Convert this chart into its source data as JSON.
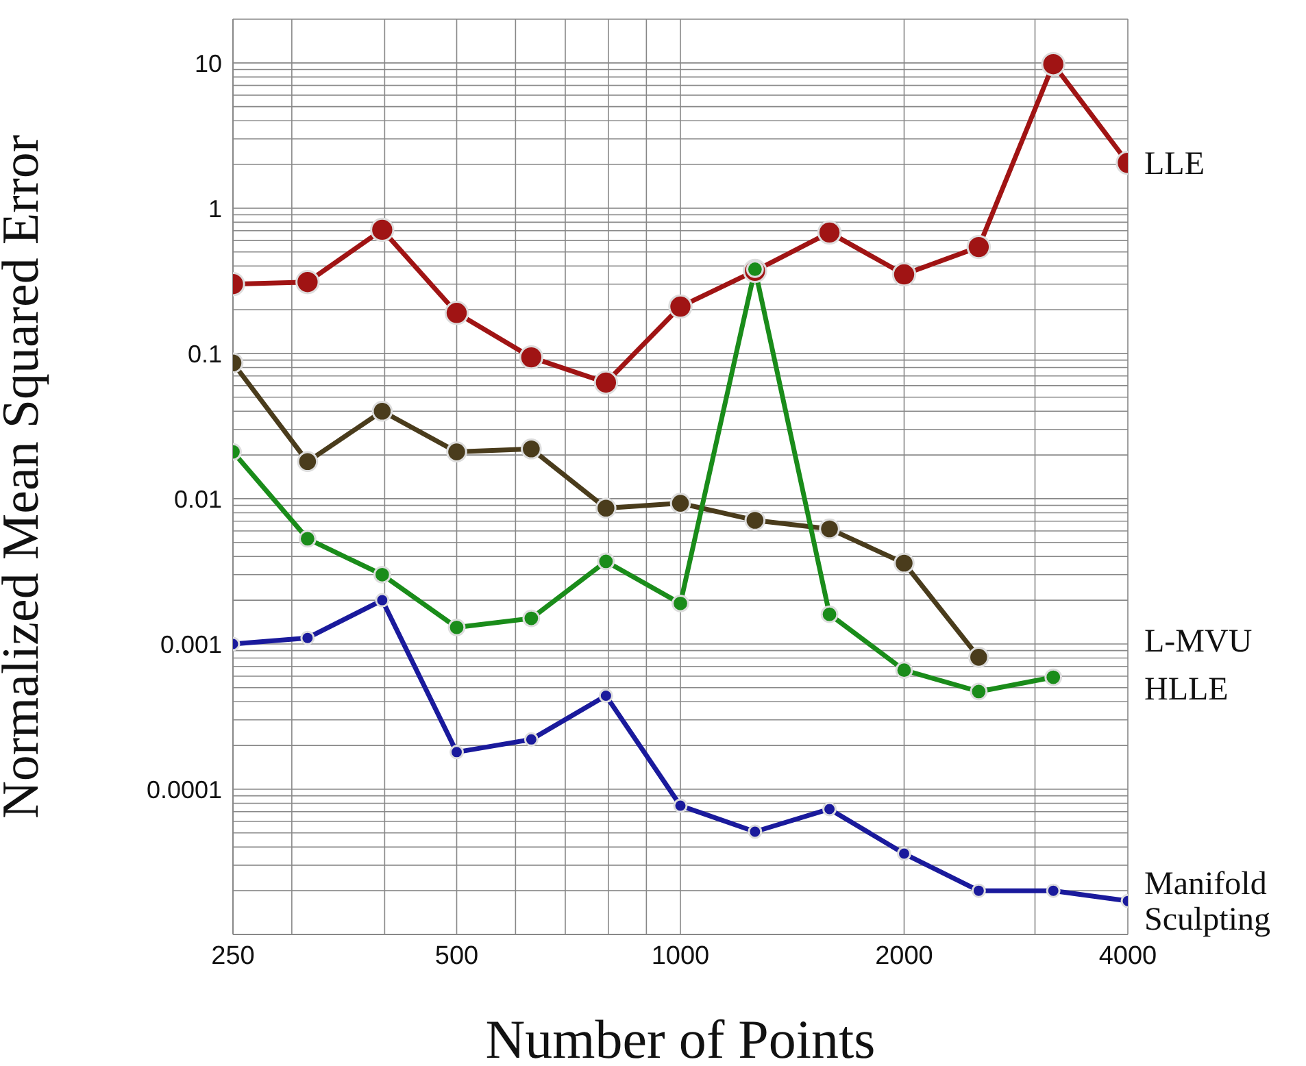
{
  "chart_data": {
    "type": "line",
    "xlabel": "Number of Points",
    "ylabel": "Normalized Mean Squared Error",
    "log": "xy",
    "grid": true,
    "marker": "circle",
    "line_style": "solid",
    "x": [
      250,
      315,
      397,
      500,
      630,
      794,
      1000,
      1260,
      1587,
      2000,
      2520,
      3175,
      4000
    ],
    "xlim": [
      250,
      4000
    ],
    "xticks": [
      250,
      {
        "value": 300,
        "label": null
      },
      {
        "value": 400,
        "label": null
      },
      500,
      {
        "value": 600,
        "label": null
      },
      {
        "value": 700,
        "label": null
      },
      {
        "value": 800,
        "label": null
      },
      {
        "value": 900,
        "label": null
      },
      1000,
      2000,
      {
        "value": 3000,
        "label": null
      },
      4000
    ],
    "ylim": [
      1e-05,
      20
    ],
    "yticks": [
      {
        "value": 1e-05,
        "label": null
      },
      {
        "value": 2e-05,
        "label": null
      },
      {
        "value": 3e-05,
        "label": null
      },
      {
        "value": 4e-05,
        "label": null
      },
      {
        "value": 5e-05,
        "label": null
      },
      {
        "value": 6e-05,
        "label": null
      },
      {
        "value": 7e-05,
        "label": null
      },
      {
        "value": 8e-05,
        "label": null
      },
      {
        "value": 9e-05,
        "label": null
      },
      0.0001,
      {
        "value": 0.0002,
        "label": null
      },
      {
        "value": 0.0003,
        "label": null
      },
      {
        "value": 0.0004,
        "label": null
      },
      {
        "value": 0.0005,
        "label": null
      },
      {
        "value": 0.0006,
        "label": null
      },
      {
        "value": 0.0007,
        "label": null
      },
      {
        "value": 0.0008,
        "label": null
      },
      {
        "value": 0.0009,
        "label": null
      },
      0.001,
      {
        "value": 0.002,
        "label": null
      },
      {
        "value": 0.003,
        "label": null
      },
      {
        "value": 0.004,
        "label": null
      },
      {
        "value": 0.005,
        "label": null
      },
      {
        "value": 0.006,
        "label": null
      },
      {
        "value": 0.007,
        "label": null
      },
      {
        "value": 0.008,
        "label": null
      },
      {
        "value": 0.009,
        "label": null
      },
      0.01,
      {
        "value": 0.02,
        "label": null
      },
      {
        "value": 0.03,
        "label": null
      },
      {
        "value": 0.04,
        "label": null
      },
      {
        "value": 0.05,
        "label": null
      },
      {
        "value": 0.06,
        "label": null
      },
      {
        "value": 0.07,
        "label": null
      },
      {
        "value": 0.08,
        "label": null
      },
      {
        "value": 0.09,
        "label": null
      },
      0.1,
      {
        "value": 0.2,
        "label": null
      },
      {
        "value": 0.3,
        "label": null
      },
      {
        "value": 0.4,
        "label": null
      },
      {
        "value": 0.5,
        "label": null
      },
      {
        "value": 0.6,
        "label": null
      },
      {
        "value": 0.7,
        "label": null
      },
      {
        "value": 0.8,
        "label": null
      },
      {
        "value": 0.9,
        "label": null
      },
      1,
      {
        "value": 2,
        "label": null
      },
      {
        "value": 3,
        "label": null
      },
      {
        "value": 4,
        "label": null
      },
      {
        "value": 5,
        "label": null
      },
      {
        "value": 6,
        "label": null
      },
      {
        "value": 7,
        "label": null
      },
      {
        "value": 8,
        "label": null
      },
      {
        "value": 9,
        "label": null
      },
      10,
      {
        "value": 20,
        "label": null
      }
    ],
    "series": [
      {
        "name": "LLE",
        "color": "#a01414",
        "values": [
          0.3,
          0.31,
          0.71,
          0.19,
          0.094,
          0.063,
          0.21,
          0.37,
          0.68,
          0.35,
          0.54,
          9.8,
          2.05
        ]
      },
      {
        "name": "L-MVU",
        "color": "#4a3c1c",
        "values": [
          0.086,
          0.018,
          0.04,
          0.021,
          0.022,
          0.0086,
          0.0093,
          0.0071,
          0.0062,
          0.0036,
          0.00081,
          null,
          null
        ]
      },
      {
        "name": "HLLE",
        "color": "#1a8c1a",
        "values": [
          0.021,
          0.0053,
          0.003,
          0.0013,
          0.0015,
          0.0037,
          0.0019,
          0.38,
          0.0016,
          0.00066,
          0.00047,
          0.00059,
          null
        ]
      },
      {
        "name": "Manifold Sculpting",
        "color": "#1a1a9c",
        "values": [
          0.001,
          0.0011,
          0.002,
          0.00018,
          0.00022,
          0.00044,
          7.7e-05,
          5.1e-05,
          7.3e-05,
          3.6e-05,
          2e-05,
          2e-05,
          1.7e-05
        ]
      }
    ]
  }
}
